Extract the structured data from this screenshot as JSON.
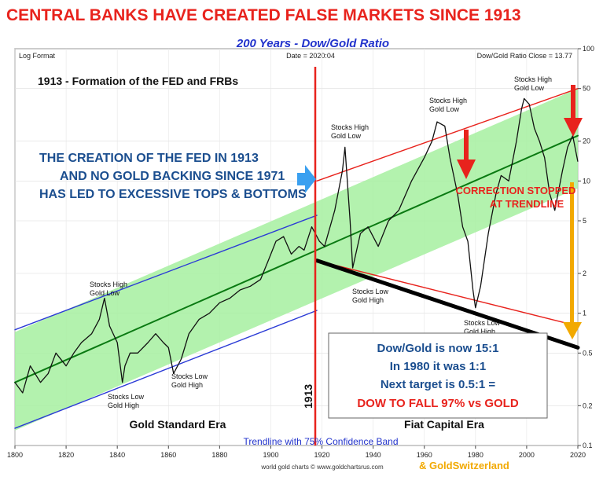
{
  "header": {
    "title": "CENTRAL BANKS HAVE CREATED FALSE MARKETS SINCE 1913",
    "subtitle": "200 Years - Dow/Gold Ratio"
  },
  "meta": {
    "log_format": "Log Format",
    "date": "Date = 2020:04",
    "close": "Dow/Gold Ratio Close = 13.77"
  },
  "colors": {
    "title": "#e8231d",
    "subtitle": "#2233cc",
    "band": "#a6f0a0",
    "trend": "#0a7a12",
    "blue_channel": "#2b3bd6",
    "red_channel": "#e8231d",
    "callout_text": "#1b4e8f",
    "arrow_blue": "#3aa0f0",
    "arrow_red": "#e8231d",
    "arrow_orange": "#f2a900",
    "footer_credit": "#f2a900"
  },
  "annotations": {
    "fed_label": "1913 - Formation of the FED and FRBs",
    "fed_year": "1913",
    "callout": [
      "THE CREATION OF THE FED IN 1913",
      "AND NO GOLD BACKING SINCE 1971",
      "HAS LED TO EXCESSIVE TOPS & BOTTOMS"
    ],
    "stocks_high_gold_low": [
      "Stocks High",
      "Gold Low"
    ],
    "stocks_low_gold_high": [
      "Stocks Low",
      "Gold High"
    ],
    "correction": [
      "CORRECTION STOPPED",
      "AT TRENDLINE"
    ],
    "era_left": "Gold Standard Era",
    "era_right": "Fiat Capital Era",
    "trendline_note": "Trendline with 75% Confidence Band",
    "source": "world gold charts © www.goldchartsrus.com",
    "credit": "& GoldSwitzerland"
  },
  "info_box": {
    "line1": "Dow/Gold is now 15:1",
    "line2": "In 1980 it was 1:1",
    "line3": "Next target is 0.5:1 =",
    "line4": "DOW TO FALL 97% vs GOLD"
  },
  "chart_data": {
    "type": "line",
    "title": "200 Years - Dow/Gold Ratio",
    "y_scale": "log",
    "xlim": [
      1800,
      2020
    ],
    "ylim": [
      0.1,
      100
    ],
    "x_ticks": [
      "1800",
      "1820",
      "1840",
      "1860",
      "1880",
      "1900",
      "1920",
      "1940",
      "1960",
      "1980",
      "2000",
      "2020"
    ],
    "y_ticks": [
      "0.1",
      "0.2",
      "0.5",
      "1",
      "2",
      "5",
      "10",
      "20",
      "50",
      "100"
    ],
    "series": [
      {
        "x": [
          1800,
          1803,
          1806,
          1810,
          1813,
          1816,
          1820,
          1823,
          1826,
          1830,
          1833,
          1835,
          1837,
          1840,
          1842,
          1843,
          1845,
          1848,
          1852,
          1855,
          1858,
          1860,
          1862,
          1865,
          1868,
          1872,
          1876,
          1880,
          1884,
          1888,
          1892,
          1896,
          1899,
          1902,
          1905,
          1908,
          1911,
          1913,
          1916,
          1919,
          1921,
          1925,
          1928,
          1929,
          1931,
          1932,
          1935,
          1938,
          1942,
          1946,
          1950,
          1955,
          1960,
          1963,
          1965,
          1968,
          1970,
          1973,
          1975,
          1977,
          1979,
          1980,
          1982,
          1985,
          1988,
          1990,
          1993,
          1996,
          1998,
          1999,
          2001,
          2003,
          2005,
          2007,
          2009,
          2011,
          2014,
          2016,
          2018,
          2020
        ],
        "y": [
          0.3,
          0.25,
          0.4,
          0.3,
          0.35,
          0.5,
          0.4,
          0.5,
          0.6,
          0.7,
          0.9,
          1.3,
          0.8,
          0.6,
          0.3,
          0.4,
          0.5,
          0.5,
          0.6,
          0.7,
          0.6,
          0.55,
          0.35,
          0.45,
          0.7,
          0.9,
          1.0,
          1.2,
          1.3,
          1.5,
          1.6,
          1.8,
          2.5,
          3.5,
          3.8,
          2.8,
          3.2,
          3.0,
          4.5,
          3.5,
          3.2,
          6.0,
          12.0,
          18.0,
          5.0,
          2.2,
          4.0,
          4.5,
          3.2,
          5.0,
          6.0,
          10.0,
          15.0,
          20.0,
          28.0,
          26.0,
          15.0,
          8.0,
          4.5,
          3.5,
          1.5,
          1.1,
          1.6,
          4.0,
          8.0,
          11.0,
          10.0,
          20.0,
          35.0,
          42.0,
          38.0,
          25.0,
          20.0,
          15.0,
          8.0,
          6.0,
          12.0,
          18.0,
          22.0,
          14.0
        ]
      }
    ],
    "channels": [
      {
        "name": "trend",
        "x": [
          1800,
          2020
        ],
        "y": [
          0.3,
          22
        ]
      },
      {
        "name": "band_upper",
        "x": [
          1800,
          2020
        ],
        "y": [
          0.72,
          50
        ]
      },
      {
        "name": "band_lower",
        "x": [
          1800,
          2020
        ],
        "y": [
          0.13,
          8.8
        ]
      },
      {
        "name": "blue_upper",
        "x": [
          1800,
          1918
        ],
        "y": [
          0.75,
          5.5
        ]
      },
      {
        "name": "blue_lower",
        "x": [
          1800,
          1918
        ],
        "y": [
          0.135,
          1.05
        ]
      },
      {
        "name": "red_upper",
        "x": [
          1918,
          2020
        ],
        "y": [
          10,
          50
        ]
      },
      {
        "name": "red_lower",
        "x": [
          1918,
          2020
        ],
        "y": [
          2.5,
          0.8
        ]
      },
      {
        "name": "black_target",
        "x": [
          1918,
          2020
        ],
        "y": [
          2.5,
          0.55
        ]
      }
    ]
  }
}
